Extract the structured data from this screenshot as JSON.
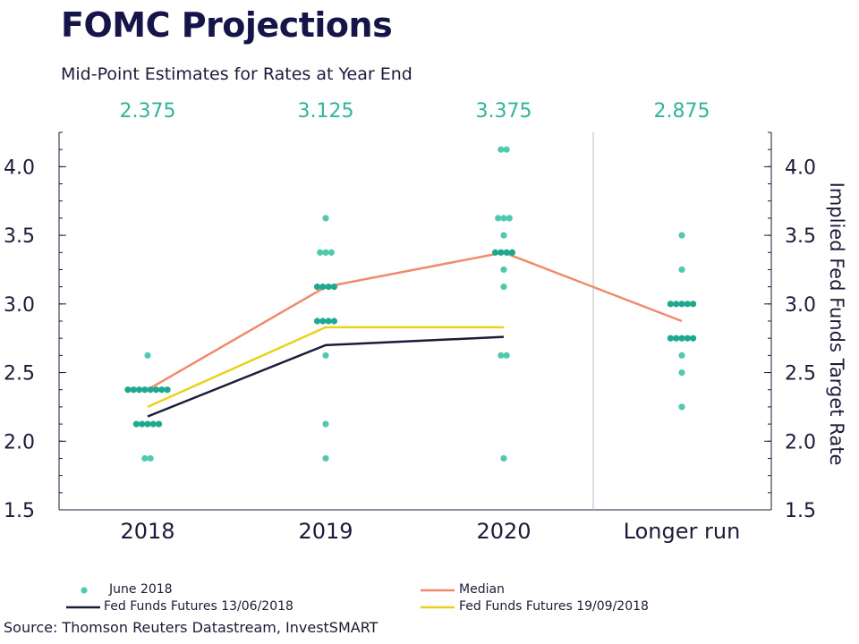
{
  "title": "FOMC Projections",
  "subtitle": "Mid-Point Estimates for Rates at Year End",
  "medians_text": [
    "2.375",
    "3.125",
    "3.375",
    "2.875"
  ],
  "right_axis_label": "Implied Fed Funds Target Rate",
  "source": "Source: Thomson Reuters Datastream, InvestSMART",
  "legend": {
    "june": "June 2018",
    "median": "Median",
    "ff1": "Fed Funds Futures 13/06/2018",
    "ff2": "Fed Funds Futures 19/09/2018"
  },
  "colors": {
    "dots": "#4fc9b0",
    "dots_dark": "#1ea88e",
    "median": "#f08a6e",
    "ff1": "#1b1b3a",
    "ff2": "#e8d21c",
    "median_text": "#2fb59c"
  },
  "chart_data": {
    "type": "scatter",
    "categories": [
      "2018",
      "2019",
      "2020",
      "Longer run"
    ],
    "ylim": [
      1.5,
      4.25
    ],
    "yticks": [
      1.5,
      2.0,
      2.5,
      3.0,
      3.5,
      4.0
    ],
    "ytick_labels": [
      "1.5",
      "2.0",
      "2.5",
      "3.0",
      "3.5",
      "4.0"
    ],
    "dots": [
      {
        "category": "2018",
        "points": [
          {
            "y": 2.625,
            "n": 1
          },
          {
            "y": 2.375,
            "n": 8
          },
          {
            "y": 2.125,
            "n": 5
          },
          {
            "y": 1.875,
            "n": 2
          }
        ]
      },
      {
        "category": "2019",
        "points": [
          {
            "y": 3.625,
            "n": 1
          },
          {
            "y": 3.375,
            "n": 3
          },
          {
            "y": 3.125,
            "n": 4
          },
          {
            "y": 2.875,
            "n": 4
          },
          {
            "y": 2.625,
            "n": 1
          },
          {
            "y": 2.125,
            "n": 1
          },
          {
            "y": 1.875,
            "n": 1
          }
        ]
      },
      {
        "category": "2020",
        "points": [
          {
            "y": 4.125,
            "n": 2
          },
          {
            "y": 3.625,
            "n": 3
          },
          {
            "y": 3.5,
            "n": 1
          },
          {
            "y": 3.375,
            "n": 4
          },
          {
            "y": 3.25,
            "n": 1
          },
          {
            "y": 3.125,
            "n": 1
          },
          {
            "y": 2.625,
            "n": 2
          },
          {
            "y": 1.875,
            "n": 1
          }
        ]
      },
      {
        "category": "Longer run",
        "points": [
          {
            "y": 3.5,
            "n": 1
          },
          {
            "y": 3.25,
            "n": 1
          },
          {
            "y": 3.0,
            "n": 5
          },
          {
            "y": 2.75,
            "n": 5
          },
          {
            "y": 2.625,
            "n": 1
          },
          {
            "y": 2.5,
            "n": 1
          },
          {
            "y": 2.25,
            "n": 1
          }
        ]
      }
    ],
    "series": [
      {
        "name": "Median",
        "categories": [
          "2018",
          "2019",
          "2020",
          "Longer run"
        ],
        "values": [
          2.375,
          3.125,
          3.375,
          2.875
        ]
      },
      {
        "name": "Fed Funds Futures 13/06/2018",
        "categories": [
          "2018",
          "2019",
          "2020"
        ],
        "values": [
          2.18,
          2.7,
          2.76
        ]
      },
      {
        "name": "Fed Funds Futures 19/09/2018",
        "categories": [
          "2018",
          "2019",
          "2020"
        ],
        "values": [
          2.25,
          2.83,
          2.83
        ]
      }
    ]
  }
}
